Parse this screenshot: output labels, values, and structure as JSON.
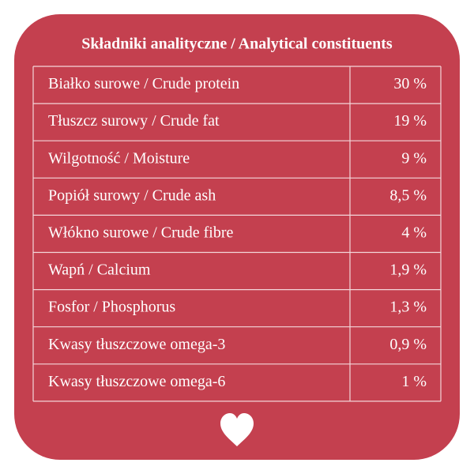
{
  "table": {
    "title": "Składniki analityczne / Analytical constituents",
    "rows": [
      [
        "Białko surowe / Crude protein",
        "30 %"
      ],
      [
        "Tłuszcz surowy / Crude fat",
        "19 %"
      ],
      [
        "Wilgotność / Moisture",
        "9 %"
      ],
      [
        "Popiół surowy / Crude ash",
        "8,5 %"
      ],
      [
        "Włókno surowe / Crude fibre",
        "4 %"
      ],
      [
        "Wapń / Calcium",
        "1,9 %"
      ],
      [
        "Fosfor / Phosphorus",
        "1,3 %"
      ],
      [
        "Kwasy tłuszczowe omega-3",
        "0,9 %"
      ],
      [
        "Kwasy tłuszczowe omega-6",
        "1 %"
      ]
    ]
  }
}
